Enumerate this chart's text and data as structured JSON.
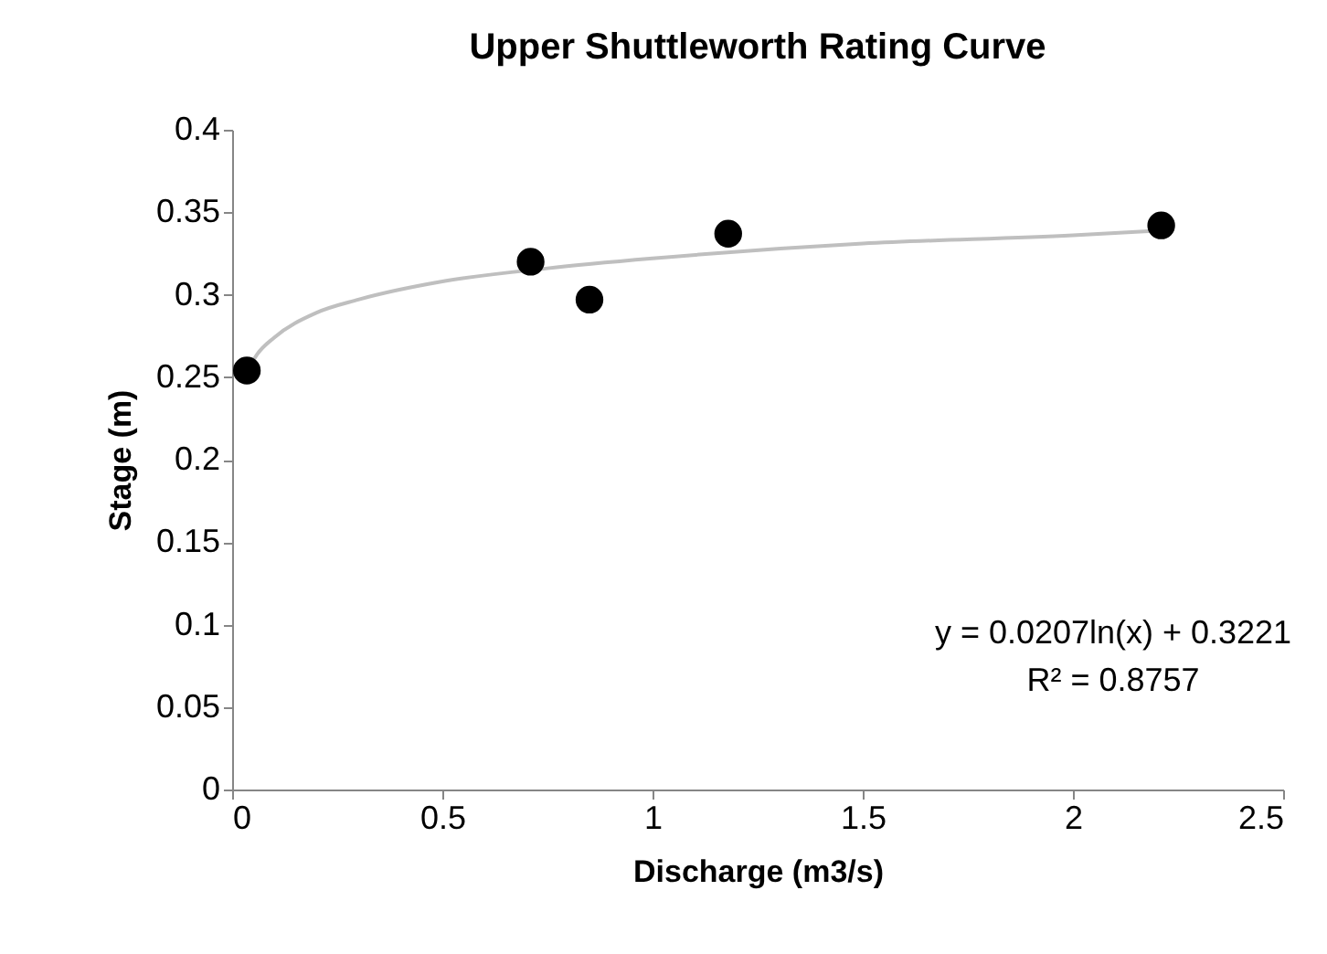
{
  "chart_data": {
    "type": "scatter",
    "title": "Upper Shuttleworth Rating Curve",
    "xlabel": "Discharge (m3/s)",
    "ylabel": "Stage (m)",
    "series": [
      {
        "color": "#000000",
        "marker": "circle",
        "x": [
          0.035,
          0.71,
          0.85,
          1.18,
          2.21
        ],
        "values": [
          0.254,
          0.32,
          0.297,
          0.337,
          0.342
        ]
      },
      {
        "type": "line",
        "marker": "none",
        "color": "#bfbfbf",
        "x": [
          0.035,
          0.06,
          0.1,
          0.2,
          0.3,
          0.5,
          0.75,
          1,
          1.5,
          2,
          2.21
        ],
        "values": [
          0.253,
          0.264,
          0.274,
          0.289,
          0.297,
          0.308,
          0.316,
          0.322,
          0.331,
          0.336,
          0.339
        ]
      }
    ],
    "grid": false,
    "xlim": [
      0,
      2.5
    ],
    "xticks": [
      0,
      0.5,
      1,
      1.5,
      2,
      2.5
    ],
    "ylim": [
      0,
      0.4
    ],
    "yticks": [
      0,
      0.05,
      0.1,
      0.15,
      0.2,
      0.25,
      0.3,
      0.35,
      0.4
    ],
    "annotations": [
      "y = 0.0207ln(x) + 0.3221",
      "R² = 0.8757"
    ]
  }
}
